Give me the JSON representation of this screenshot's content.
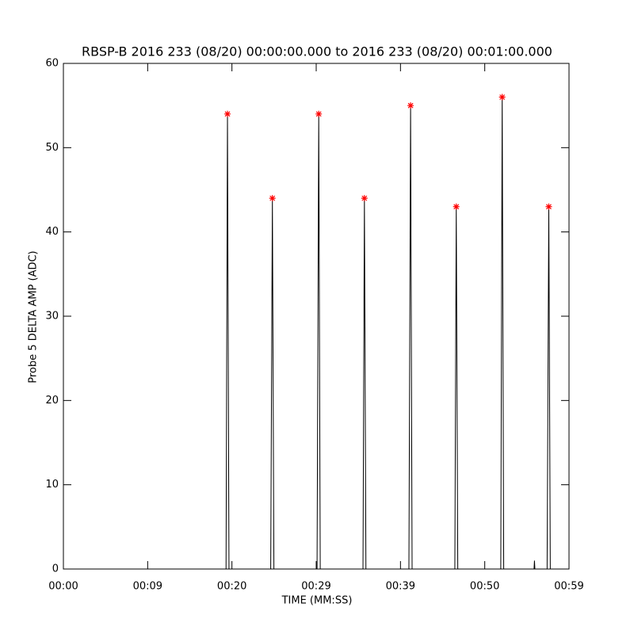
{
  "chart_data": {
    "type": "line",
    "title": "RBSP-B 2016 233 (08/20) 00:00:00.000 to 2016 233 (08/20) 00:01:00.000",
    "x_label": "TIME (MM:SS)",
    "y_label": "Probe 5 DELTA AMP (ADC)",
    "xlim": [
      0,
      60
    ],
    "ylim": [
      0,
      60
    ],
    "xticks": [
      {
        "value": 0,
        "label": "00:00"
      },
      {
        "value": 10,
        "label": "00:09"
      },
      {
        "value": 20,
        "label": "00:20"
      },
      {
        "value": 30,
        "label": "00:29"
      },
      {
        "value": 40,
        "label": "00:39"
      },
      {
        "value": 50,
        "label": "00:50"
      },
      {
        "value": 60,
        "label": "00:59"
      }
    ],
    "yticks": [
      0,
      10,
      20,
      30,
      40,
      50,
      60
    ],
    "series": [
      {
        "color": "#000000",
        "x": [
          0,
          19.3,
          19.47,
          19.65,
          24.6,
          24.8,
          24.98,
          30.1,
          30.3,
          30.48,
          35.55,
          35.72,
          35.9,
          41.0,
          41.2,
          41.38,
          46.45,
          46.62,
          46.8,
          51.9,
          52.07,
          52.25,
          55.85,
          55.9,
          55.95,
          57.4,
          57.6,
          57.78,
          60
        ],
        "values": [
          0,
          0,
          54,
          0,
          0,
          44,
          0,
          0,
          54,
          0,
          0,
          44,
          0,
          0,
          55,
          0,
          0,
          43,
          0,
          0,
          56,
          0,
          0,
          1,
          0,
          0,
          43,
          0,
          0
        ]
      },
      {
        "color": "#ff0000",
        "marker": "asterisk",
        "x": [
          19.47,
          24.8,
          30.3,
          35.72,
          41.2,
          46.62,
          52.07,
          57.6
        ],
        "values": [
          54,
          44,
          54,
          44,
          55,
          43,
          56,
          43
        ]
      }
    ]
  }
}
